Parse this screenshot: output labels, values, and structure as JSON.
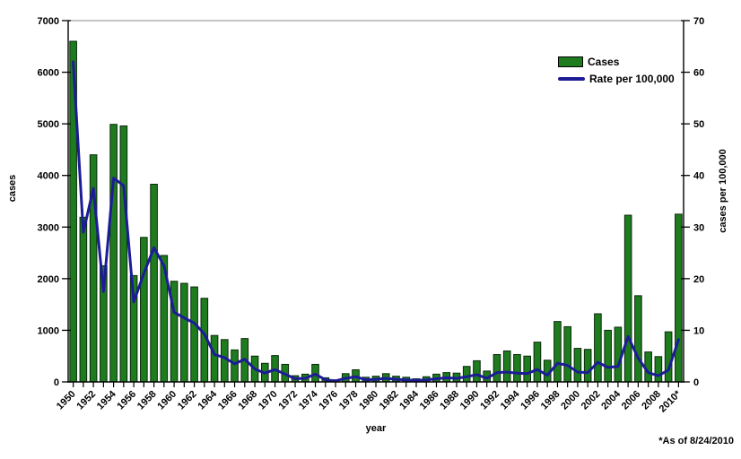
{
  "figure": {
    "footnote": "*As of 8/24/2010"
  },
  "legend": {
    "cases_label": "Cases",
    "rate_label": "Rate per 100,000"
  },
  "axes": {
    "left": {
      "title": "cases",
      "ticks": [
        0,
        1000,
        2000,
        3000,
        4000,
        5000,
        6000,
        7000
      ],
      "range": [
        0,
        7000
      ]
    },
    "right": {
      "title": "cases per 100,000",
      "ticks": [
        0,
        10,
        20,
        30,
        40,
        50,
        60,
        70
      ],
      "range": [
        0,
        70
      ]
    },
    "x": {
      "title": "year",
      "tick_labels": [
        "1950",
        "1952",
        "1954",
        "1956",
        "1958",
        "1960",
        "1962",
        "1964",
        "1966",
        "1968",
        "1970",
        "1972",
        "1974",
        "1976",
        "1978",
        "1980",
        "1982",
        "1984",
        "1986",
        "1988",
        "1990",
        "1992",
        "1994",
        "1996",
        "1998",
        "2000",
        "2002",
        "2004",
        "2006",
        "2008",
        "2010*"
      ]
    }
  },
  "colors": {
    "bar_fill": "#1E7B1E",
    "bar_border": "#0A2A0A",
    "line": "#1C1C96",
    "top_border": "#A0A0A0",
    "axis": "#000000",
    "text": "#000000"
  },
  "chart_data": {
    "type": "bar",
    "subtype": "bar+line dual axis",
    "title": "",
    "xlabel": "year",
    "ylabel": "cases",
    "ylabel_right": "cases per 100,000",
    "ylim_left": [
      0,
      7000
    ],
    "ylim_right": [
      0,
      70
    ],
    "grid": "off",
    "legend_position": "top-right inside",
    "x": [
      1950,
      1951,
      1952,
      1953,
      1954,
      1955,
      1956,
      1957,
      1958,
      1959,
      1960,
      1961,
      1962,
      1963,
      1964,
      1965,
      1966,
      1967,
      1968,
      1969,
      1970,
      1971,
      1972,
      1973,
      1974,
      1975,
      1976,
      1977,
      1978,
      1979,
      1980,
      1981,
      1982,
      1983,
      1984,
      1985,
      1986,
      1987,
      1988,
      1989,
      1990,
      1991,
      1992,
      1993,
      1994,
      1995,
      1996,
      1997,
      1998,
      1999,
      2000,
      2001,
      2002,
      2003,
      2004,
      2005,
      2006,
      2007,
      2008,
      2009,
      2010
    ],
    "series": [
      {
        "name": "Cases",
        "type": "bar",
        "axis": "left",
        "values": [
          6600,
          3190,
          4400,
          2250,
          4990,
          4960,
          2060,
          2800,
          3830,
          2450,
          1950,
          1910,
          1840,
          1620,
          900,
          820,
          620,
          840,
          500,
          360,
          510,
          340,
          120,
          150,
          340,
          80,
          40,
          160,
          235,
          90,
          110,
          160,
          110,
          90,
          60,
          100,
          150,
          180,
          170,
          300,
          410,
          210,
          530,
          600,
          530,
          500,
          770,
          420,
          1170,
          1070,
          650,
          630,
          1320,
          1000,
          1060,
          3230,
          1670,
          580,
          490,
          970,
          3250
        ]
      },
      {
        "name": "Rate per 100,000",
        "type": "line",
        "axis": "right",
        "values": [
          62,
          29,
          37.5,
          17.5,
          39.5,
          38,
          15.5,
          21,
          26,
          22.5,
          13.5,
          12.4,
          11.4,
          9.3,
          5.3,
          4.7,
          3.5,
          4.4,
          2.5,
          1.7,
          2.4,
          1.5,
          0.6,
          0.7,
          1.5,
          0.4,
          0.2,
          0.7,
          1.0,
          0.4,
          0.5,
          0.7,
          0.5,
          0.4,
          0.3,
          0.4,
          0.6,
          0.8,
          0.7,
          1.0,
          1.4,
          0.7,
          1.8,
          1.9,
          1.7,
          1.6,
          2.4,
          1.3,
          3.6,
          3.2,
          1.9,
          1.8,
          3.8,
          2.8,
          3.0,
          8.8,
          4.6,
          1.8,
          1.2,
          2.3,
          8.2
        ]
      }
    ]
  }
}
